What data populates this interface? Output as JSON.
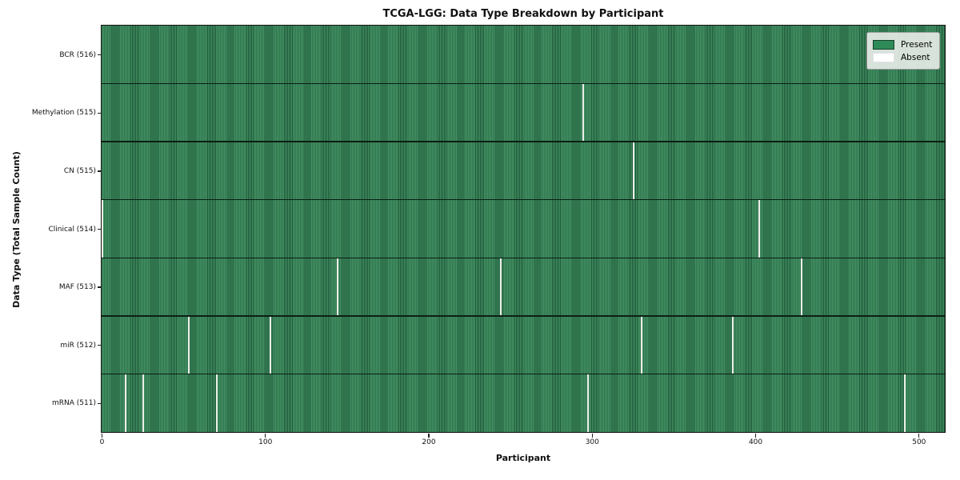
{
  "figure": {
    "title": "TCGA-LGG: Data Type Breakdown by Participant",
    "xlabel": "Participant",
    "ylabel": "Data Type (Total Sample Count)"
  },
  "legend": {
    "items": [
      {
        "label": "Present",
        "color": "#2e8b57"
      },
      {
        "label": "Absent",
        "color": "#ffffff"
      }
    ],
    "position": "upper right"
  },
  "chart_data": {
    "type": "heatmap",
    "title": "TCGA-LGG: Data Type Breakdown by Participant",
    "xlabel": "Participant",
    "ylabel": "Data Type (Total Sample Count)",
    "x_ticks": [
      0,
      100,
      200,
      300,
      400,
      500
    ],
    "x_range": [
      0,
      516
    ],
    "n_participants": 516,
    "grid": false,
    "legend_position": "upper right",
    "colors": {
      "present_fill": "#2e8b57",
      "present_stripe_light": "#449264",
      "present_stripe_dark": "#1d5637",
      "absent": "#edefe9",
      "row_separator": "#0c1f14",
      "spine": "#111111"
    },
    "rows": [
      {
        "label": "BCR (516)",
        "data_type": "BCR",
        "total_samples": 516,
        "absent_participants": []
      },
      {
        "label": "Methylation (515)",
        "data_type": "Methylation",
        "total_samples": 515,
        "absent_participants": [
          294
        ]
      },
      {
        "label": "CN (515)",
        "data_type": "CN",
        "total_samples": 515,
        "absent_participants": [
          325
        ]
      },
      {
        "label": "Clinical (514)",
        "data_type": "Clinical",
        "total_samples": 514,
        "absent_participants": [
          0,
          402
        ]
      },
      {
        "label": "MAF (513)",
        "data_type": "MAF",
        "total_samples": 513,
        "absent_participants": [
          144,
          244,
          428
        ]
      },
      {
        "label": "miR (512)",
        "data_type": "miR",
        "total_samples": 512,
        "absent_participants": [
          53,
          103,
          330,
          386
        ]
      },
      {
        "label": "mRNA (511)",
        "data_type": "mRNA",
        "total_samples": 511,
        "absent_participants": [
          14,
          25,
          70,
          297,
          491
        ]
      }
    ]
  }
}
